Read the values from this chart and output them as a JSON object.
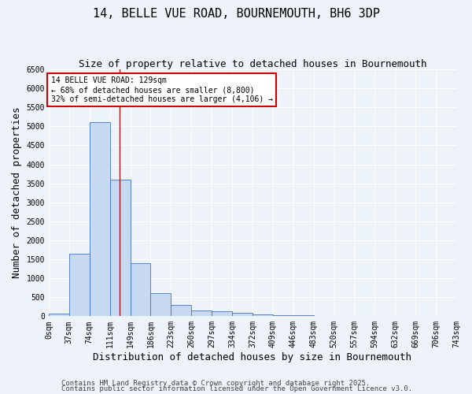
{
  "title": "14, BELLE VUE ROAD, BOURNEMOUTH, BH6 3DP",
  "subtitle": "Size of property relative to detached houses in Bournemouth",
  "xlabel": "Distribution of detached houses by size in Bournemouth",
  "ylabel": "Number of detached properties",
  "bin_labels": [
    "0sqm",
    "37sqm",
    "74sqm",
    "111sqm",
    "149sqm",
    "186sqm",
    "223sqm",
    "260sqm",
    "297sqm",
    "334sqm",
    "372sqm",
    "409sqm",
    "446sqm",
    "483sqm",
    "520sqm",
    "557sqm",
    "594sqm",
    "632sqm",
    "669sqm",
    "706sqm",
    "743sqm"
  ],
  "bar_heights": [
    75,
    1650,
    5100,
    3600,
    1400,
    600,
    300,
    160,
    130,
    100,
    50,
    30,
    20,
    5,
    3,
    2,
    1,
    1,
    0,
    0
  ],
  "bar_color": "#c6d9f0",
  "bar_edge_color": "#4472c4",
  "vline_color": "#9b1c1c",
  "ylim_max": 6500,
  "annotation_text": "14 BELLE VUE ROAD: 129sqm\n← 68% of detached houses are smaller (8,800)\n32% of semi-detached houses are larger (4,106) →",
  "annotation_box_color": "#ffffff",
  "annotation_box_edge": "#cc0000",
  "footnote1": "Contains HM Land Registry data © Crown copyright and database right 2025.",
  "footnote2": "Contains public sector information licensed under the Open Government Licence v3.0.",
  "background_color": "#eef2f9",
  "grid_color": "#ffffff",
  "title_fontsize": 11,
  "subtitle_fontsize": 9,
  "axis_label_fontsize": 9,
  "tick_fontsize": 7,
  "footnote_fontsize": 6.5
}
